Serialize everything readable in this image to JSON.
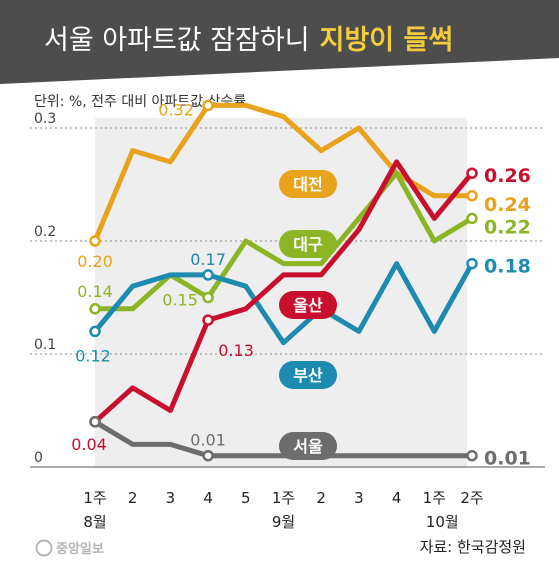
{
  "header": {
    "title_main": "서울 아파트값 잠잠하니",
    "title_highlight": "지방이 들썩"
  },
  "unit_label": "단위: %, 전주 대비 아파트값 상승률",
  "source": "자료: 한국감정원",
  "logo": "중앙일보",
  "colors": {
    "title_bar": "#4d4d4d",
    "highlight": "#f2cc3a",
    "plot_bg": "#eeeeee"
  },
  "chart_data": {
    "type": "line",
    "title": "서울 아파트값 잠잠하니 지방이 들썩",
    "ylabel": "단위: %, 전주 대비 아파트값 상승률",
    "ylim": [
      0,
      0.35
    ],
    "yticks": [
      "0",
      "0.1",
      "0.2",
      "0.3"
    ],
    "categories": [
      "1주",
      "2",
      "3",
      "4",
      "5",
      "1주",
      "2",
      "3",
      "4",
      "1주",
      "2주"
    ],
    "month_labels": [
      "8월",
      "9월",
      "10월"
    ],
    "grid": true,
    "series": [
      {
        "name": "대전",
        "color": "#e8a21c",
        "values": [
          0.2,
          0.28,
          0.27,
          0.32,
          0.32,
          0.31,
          0.28,
          0.3,
          0.26,
          0.24,
          0.24
        ],
        "labels": [
          {
            "i": 0,
            "text": "0.20"
          },
          {
            "i": 3,
            "text": "0.32"
          }
        ],
        "end_label": "0.24"
      },
      {
        "name": "대구",
        "color": "#8cb526",
        "values": [
          0.14,
          0.14,
          0.17,
          0.15,
          0.2,
          0.18,
          0.18,
          0.22,
          0.26,
          0.2,
          0.22
        ],
        "labels": [
          {
            "i": 0,
            "text": "0.14"
          },
          {
            "i": 3,
            "text": "0.15"
          }
        ],
        "end_label": "0.22"
      },
      {
        "name": "울산",
        "color": "#c8102e",
        "values": [
          0.04,
          0.07,
          0.05,
          0.13,
          0.14,
          0.17,
          0.17,
          0.21,
          0.27,
          0.22,
          0.26
        ],
        "labels": [
          {
            "i": 0,
            "text": "0.04"
          },
          {
            "i": 3,
            "text": "0.13"
          }
        ],
        "end_label": "0.26"
      },
      {
        "name": "부산",
        "color": "#1d8bb0",
        "values": [
          0.12,
          0.16,
          0.17,
          0.17,
          0.16,
          0.11,
          0.14,
          0.12,
          0.18,
          0.12,
          0.18
        ],
        "labels": [
          {
            "i": 0,
            "text": "0.12"
          },
          {
            "i": 3,
            "text": "0.17"
          }
        ],
        "end_label": "0.18"
      },
      {
        "name": "서울",
        "color": "#6d6d6d",
        "values": [
          0.04,
          0.02,
          0.02,
          0.01,
          0.01,
          0.01,
          0.01,
          0.01,
          0.01,
          0.01,
          0.01
        ],
        "labels": [
          {
            "i": 3,
            "text": "0.01"
          }
        ],
        "end_label": "0.01"
      }
    ]
  }
}
